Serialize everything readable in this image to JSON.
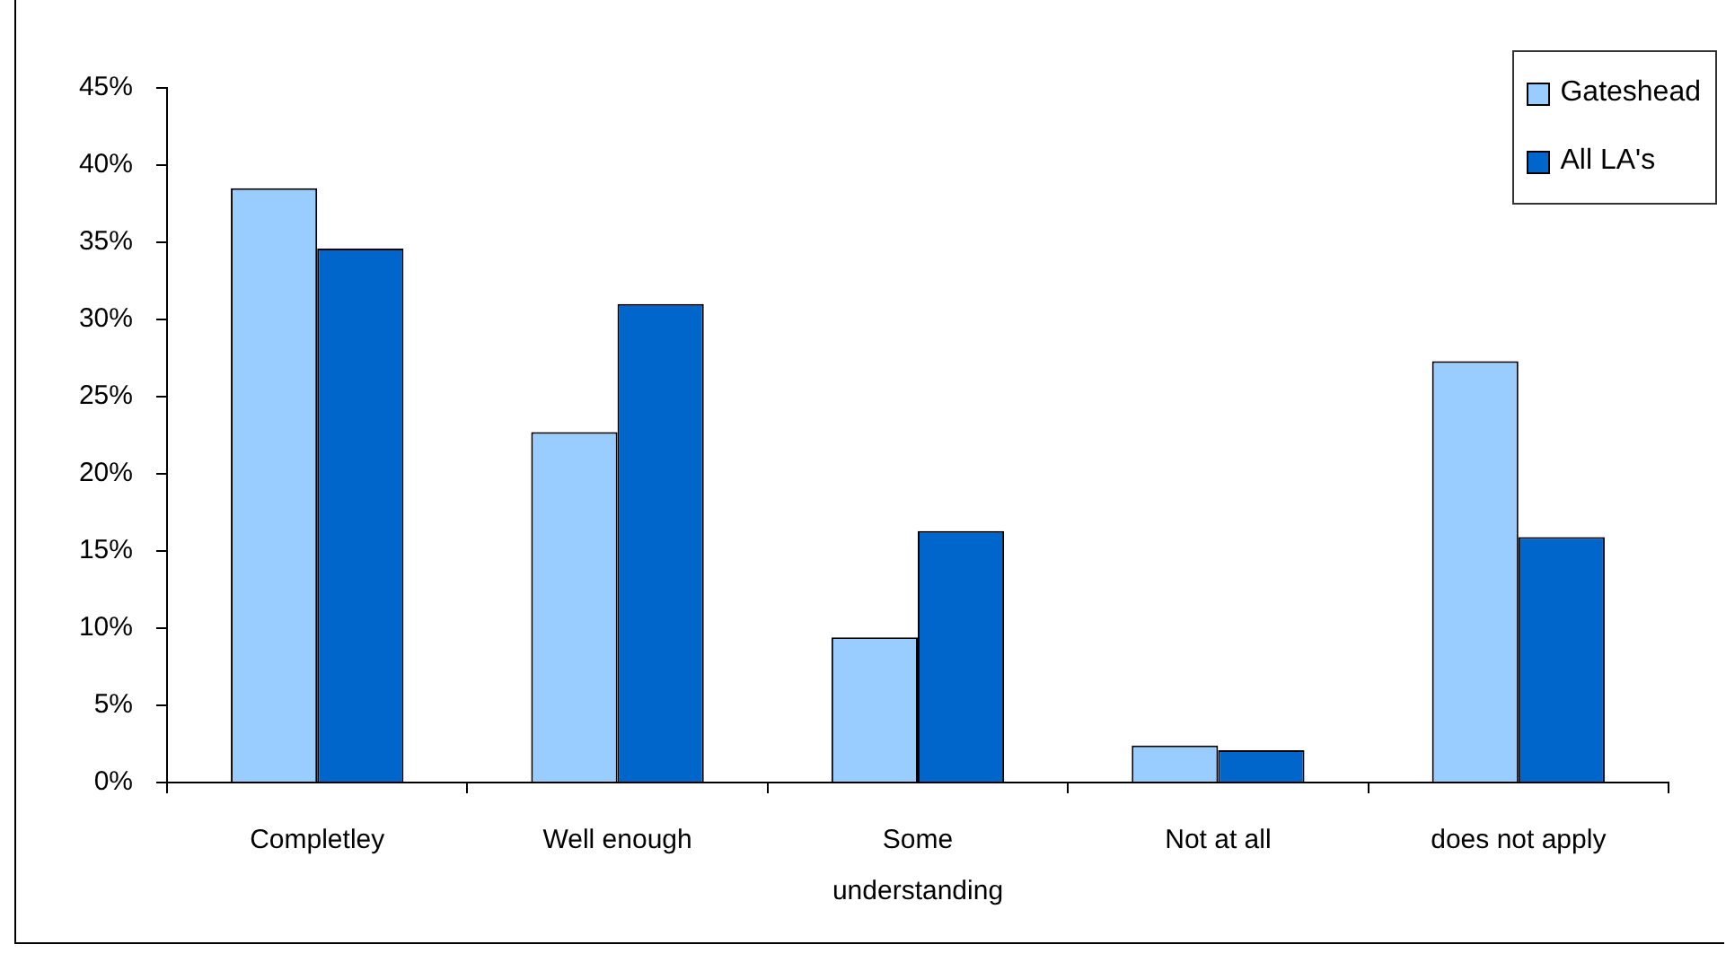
{
  "chart_data": {
    "type": "bar",
    "categories": [
      "Completley",
      "Well enough",
      "Some understanding",
      "Not at all",
      "does not apply"
    ],
    "series": [
      {
        "name": "Gateshead",
        "color": "#99ccff",
        "values": [
          38.5,
          22.7,
          9.4,
          2.4,
          27.3
        ]
      },
      {
        "name": "All LA's",
        "color": "#0066cc",
        "values": [
          34.6,
          31.0,
          16.3,
          2.1,
          15.9
        ]
      }
    ],
    "ylim": [
      0,
      45
    ],
    "yticks": [
      {
        "value": 0,
        "label": "0%"
      },
      {
        "value": 5,
        "label": "5%"
      },
      {
        "value": 10,
        "label": "10%"
      },
      {
        "value": 15,
        "label": "15%"
      },
      {
        "value": 20,
        "label": "20%"
      },
      {
        "value": 25,
        "label": "25%"
      },
      {
        "value": 30,
        "label": "30%"
      },
      {
        "value": 35,
        "label": "35%"
      },
      {
        "value": 40,
        "label": "40%"
      },
      {
        "value": 45,
        "label": "45%"
      }
    ],
    "legend": "top right"
  }
}
